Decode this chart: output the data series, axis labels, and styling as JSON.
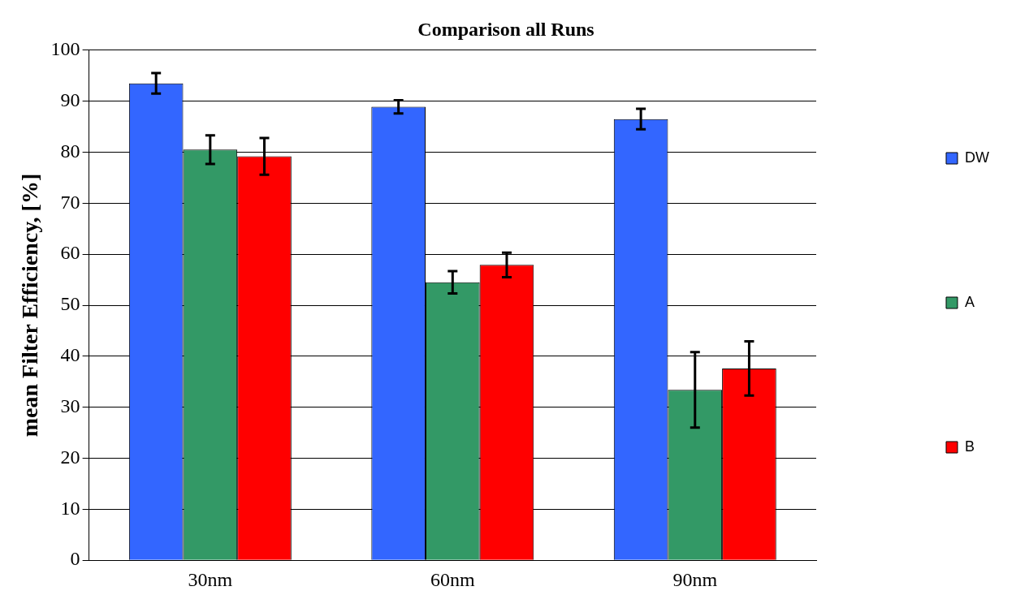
{
  "chart_data": {
    "type": "bar",
    "title": "Comparison all Runs",
    "ylabel": "mean Filter Efficiency, [%]",
    "categories": [
      "30nm",
      "60nm",
      "90nm"
    ],
    "series": [
      {
        "name": "DW",
        "color": "#3366ff",
        "values": [
          93.5,
          88.9,
          86.5
        ],
        "errors": [
          2,
          1.3,
          2
        ]
      },
      {
        "name": "A",
        "color": "#339966",
        "values": [
          80.5,
          54.5,
          33.4
        ],
        "errors": [
          2.8,
          2.2,
          7.4
        ]
      },
      {
        "name": "B",
        "color": "#ff0000",
        "values": [
          79.2,
          57.9,
          37.6
        ],
        "errors": [
          3.6,
          2.4,
          5.3
        ]
      }
    ],
    "ylim": [
      0,
      100
    ],
    "yticks": [
      0,
      10,
      20,
      30,
      40,
      50,
      60,
      70,
      80,
      90,
      100
    ],
    "grid": "y",
    "legend": "right"
  }
}
